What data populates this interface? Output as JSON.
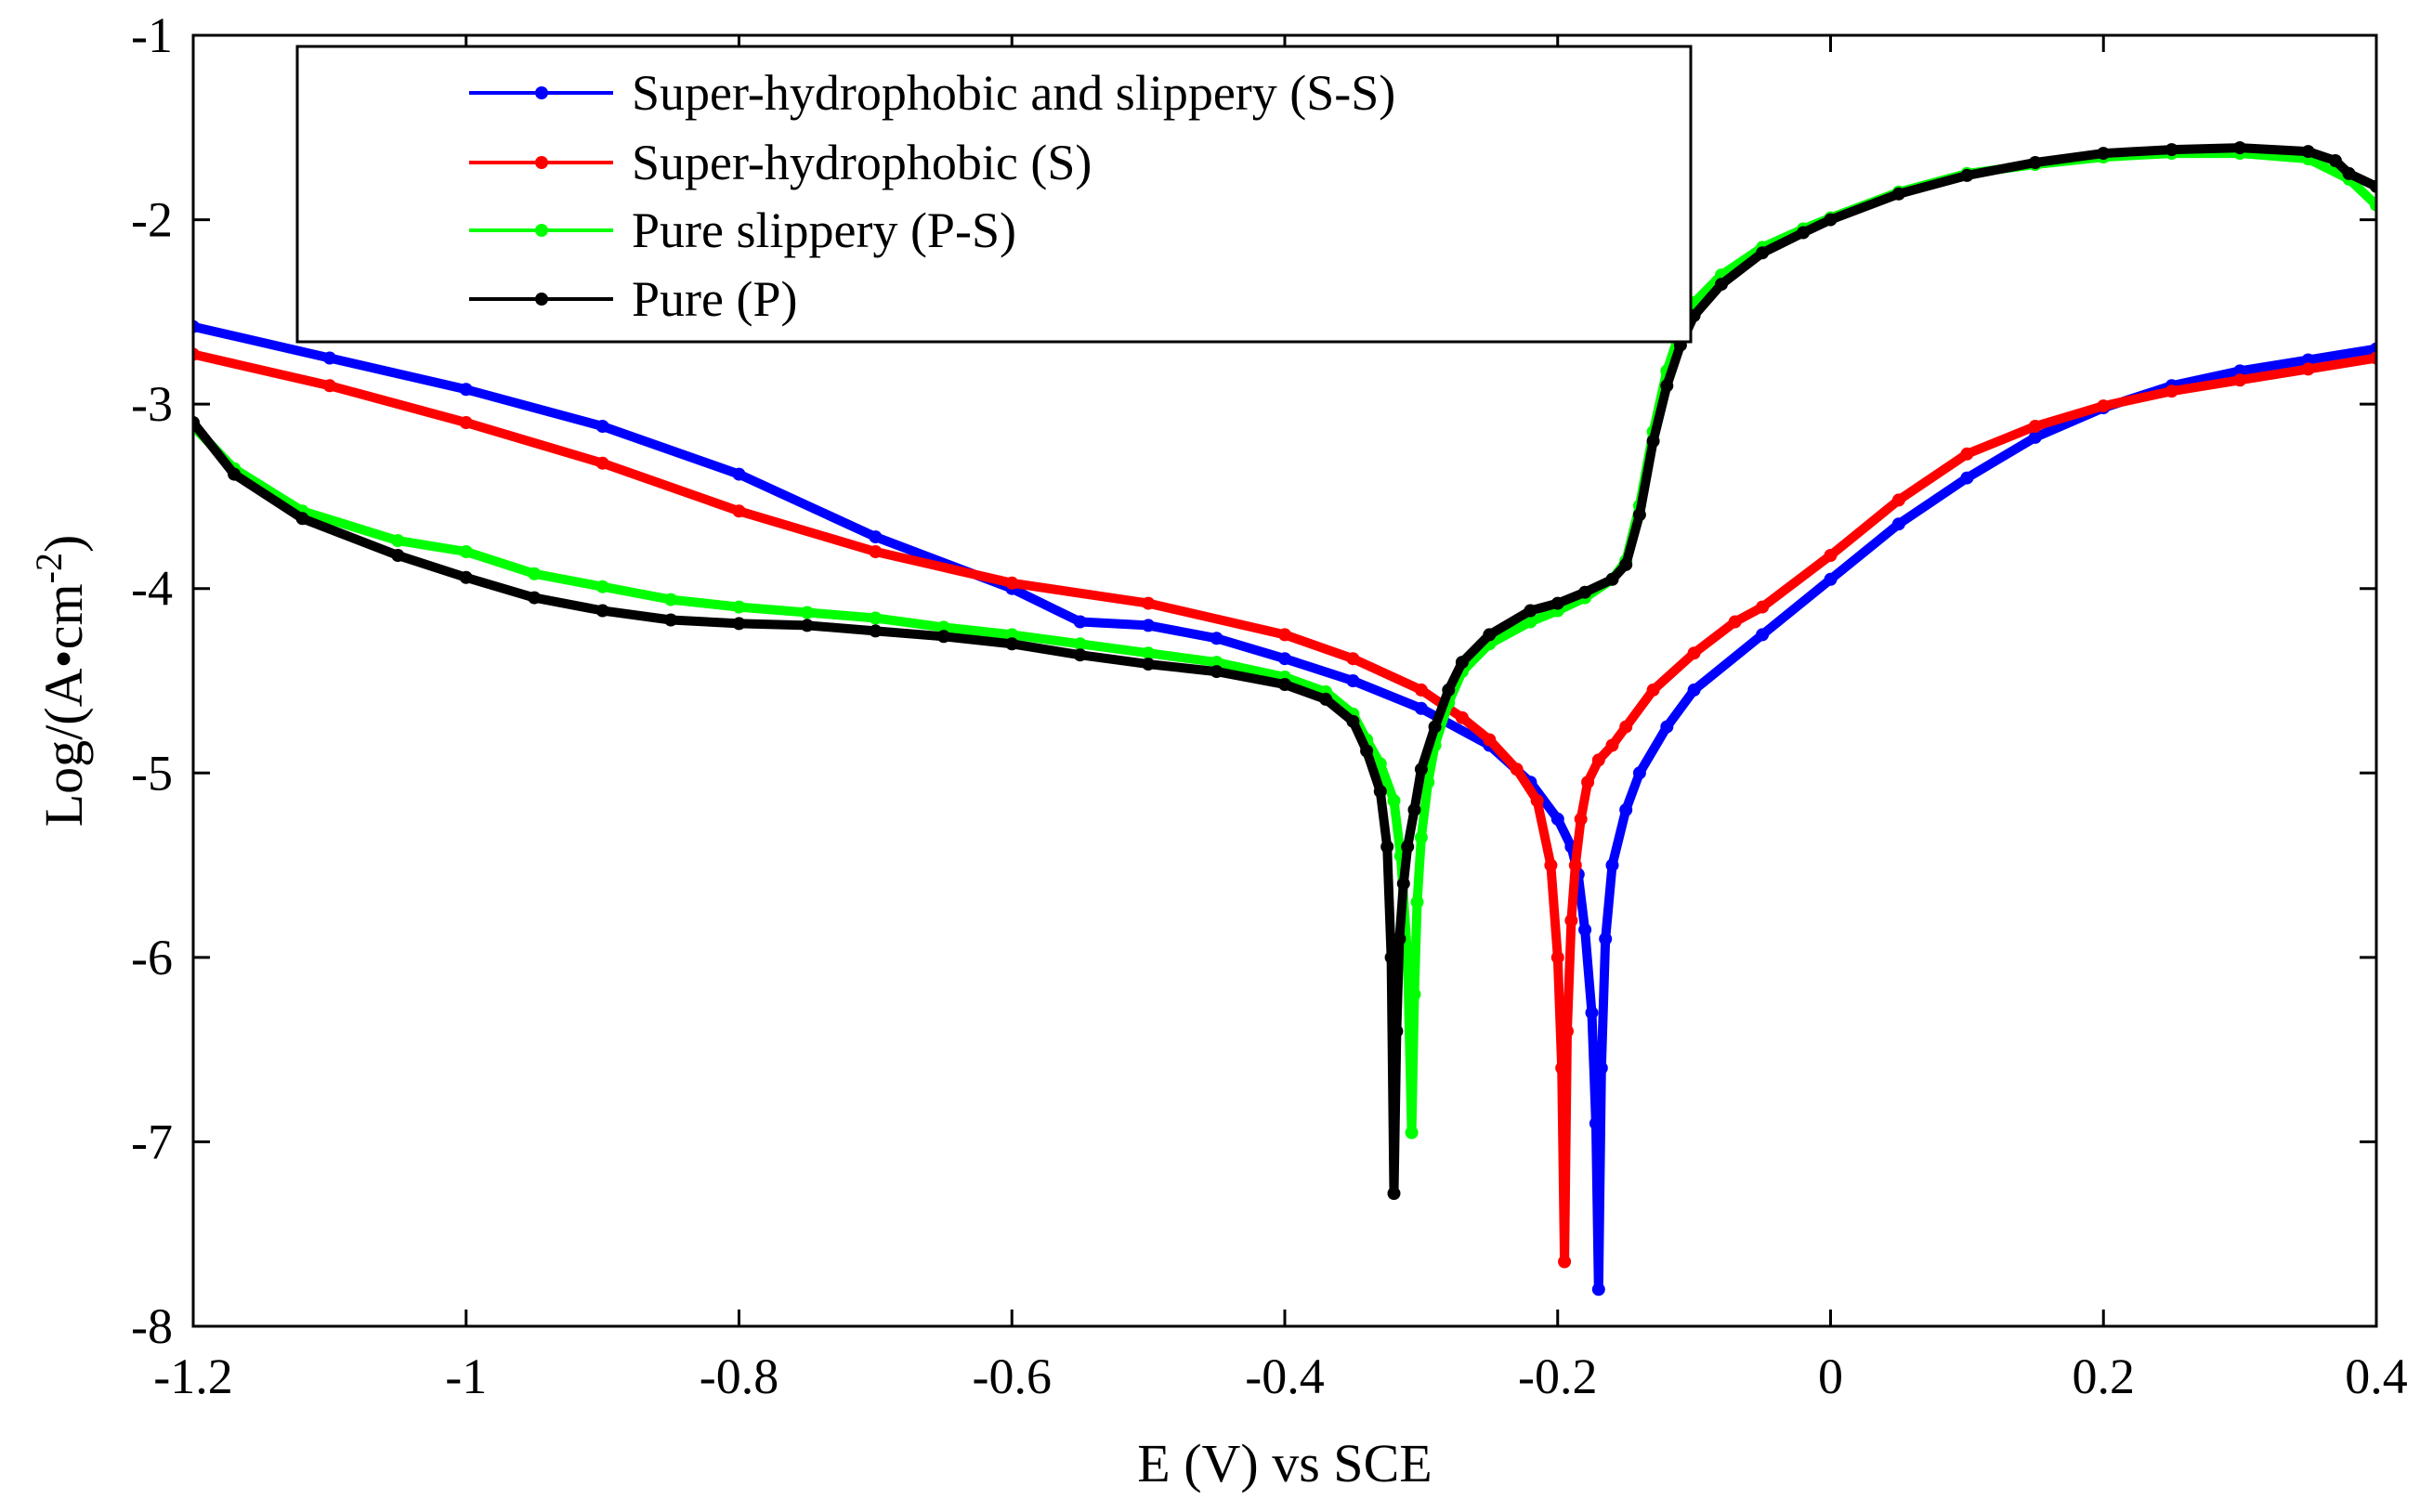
{
  "chart_data": {
    "type": "line",
    "title": "",
    "xlabel": "E (V) vs SCE",
    "ylabel": {
      "base": "Log/(A•cm",
      "superscript": "-2",
      "close": ")"
    },
    "xlim": [
      -1.2,
      0.4
    ],
    "ylim": [
      -8,
      -1
    ],
    "x_ticks": [
      -1.2,
      -1,
      -0.8,
      -0.6,
      -0.4,
      -0.2,
      0,
      0.2,
      0.4
    ],
    "x_tick_labels": [
      "-1.2",
      "-1",
      "-0.8",
      "-0.6",
      "-0.4",
      "-0.2",
      "0",
      "0.2",
      "0.4"
    ],
    "y_ticks": [
      -8,
      -7,
      -6,
      -5,
      -4,
      -3,
      -2,
      -1
    ],
    "y_tick_labels": [
      "-8",
      "-7",
      "-6",
      "-5",
      "-4",
      "-3",
      "-2",
      "-1"
    ],
    "grid": false,
    "legend_position": "top-center",
    "series": [
      {
        "name": "Super-hydrophobic and slippery (S-S)",
        "color": "#0000ff",
        "x": [
          -1.2,
          -1.1,
          -1.0,
          -0.9,
          -0.8,
          -0.7,
          -0.6,
          -0.55,
          -0.5,
          -0.45,
          -0.4,
          -0.35,
          -0.3,
          -0.25,
          -0.22,
          -0.2,
          -0.19,
          -0.185,
          -0.18,
          -0.175,
          -0.172,
          -0.17,
          -0.168,
          -0.165,
          -0.16,
          -0.15,
          -0.14,
          -0.12,
          -0.1,
          -0.05,
          0.0,
          0.05,
          0.1,
          0.15,
          0.2,
          0.25,
          0.3,
          0.35,
          0.4
        ],
        "y": [
          -2.58,
          -2.75,
          -2.92,
          -3.12,
          -3.38,
          -3.72,
          -4.0,
          -4.18,
          -4.2,
          -4.27,
          -4.38,
          -4.5,
          -4.65,
          -4.85,
          -5.05,
          -5.25,
          -5.4,
          -5.55,
          -5.85,
          -6.3,
          -6.9,
          -7.8,
          -6.6,
          -5.9,
          -5.5,
          -5.2,
          -5.0,
          -4.75,
          -4.55,
          -4.25,
          -3.95,
          -3.65,
          -3.4,
          -3.18,
          -3.02,
          -2.9,
          -2.82,
          -2.76,
          -2.7
        ]
      },
      {
        "name": "Super-hydrophobic (S)",
        "color": "#ff0000",
        "x": [
          -1.2,
          -1.1,
          -1.0,
          -0.9,
          -0.8,
          -0.7,
          -0.6,
          -0.5,
          -0.4,
          -0.35,
          -0.3,
          -0.27,
          -0.25,
          -0.23,
          -0.215,
          -0.205,
          -0.2,
          -0.197,
          -0.195,
          -0.193,
          -0.19,
          -0.187,
          -0.183,
          -0.178,
          -0.17,
          -0.16,
          -0.15,
          -0.13,
          -0.1,
          -0.07,
          -0.05,
          0.0,
          0.05,
          0.1,
          0.15,
          0.2,
          0.25,
          0.3,
          0.35,
          0.4
        ],
        "y": [
          -2.73,
          -2.9,
          -3.1,
          -3.32,
          -3.58,
          -3.8,
          -3.97,
          -4.08,
          -4.25,
          -4.38,
          -4.55,
          -4.7,
          -4.82,
          -4.98,
          -5.15,
          -5.5,
          -6.0,
          -6.6,
          -7.65,
          -6.4,
          -5.8,
          -5.5,
          -5.25,
          -5.05,
          -4.93,
          -4.85,
          -4.75,
          -4.55,
          -4.35,
          -4.18,
          -4.1,
          -3.82,
          -3.52,
          -3.27,
          -3.12,
          -3.01,
          -2.93,
          -2.87,
          -2.81,
          -2.75
        ]
      },
      {
        "name": "Pure slippery (P-S)",
        "color": "#00ff00",
        "x": [
          -1.2,
          -1.17,
          -1.12,
          -1.05,
          -1.0,
          -0.95,
          -0.9,
          -0.85,
          -0.8,
          -0.75,
          -0.7,
          -0.65,
          -0.6,
          -0.55,
          -0.5,
          -0.45,
          -0.4,
          -0.37,
          -0.35,
          -0.34,
          -0.33,
          -0.32,
          -0.315,
          -0.31,
          -0.307,
          -0.305,
          -0.303,
          -0.3,
          -0.295,
          -0.29,
          -0.28,
          -0.27,
          -0.25,
          -0.22,
          -0.2,
          -0.18,
          -0.16,
          -0.15,
          -0.14,
          -0.13,
          -0.12,
          -0.11,
          -0.1,
          -0.08,
          -0.05,
          -0.02,
          0.0,
          0.05,
          0.1,
          0.15,
          0.2,
          0.25,
          0.3,
          0.35,
          0.38,
          0.4
        ],
        "y": [
          -3.12,
          -3.35,
          -3.58,
          -3.74,
          -3.8,
          -3.92,
          -3.99,
          -4.06,
          -4.1,
          -4.13,
          -4.16,
          -4.21,
          -4.25,
          -4.3,
          -4.35,
          -4.4,
          -4.48,
          -4.56,
          -4.68,
          -4.82,
          -4.95,
          -5.15,
          -5.45,
          -6.0,
          -6.95,
          -6.2,
          -5.7,
          -5.35,
          -5.05,
          -4.85,
          -4.62,
          -4.45,
          -4.3,
          -4.18,
          -4.12,
          -4.05,
          -3.95,
          -3.85,
          -3.55,
          -3.15,
          -2.82,
          -2.6,
          -2.45,
          -2.3,
          -2.15,
          -2.05,
          -1.99,
          -1.85,
          -1.75,
          -1.7,
          -1.66,
          -1.64,
          -1.64,
          -1.67,
          -1.78,
          -1.92
        ]
      },
      {
        "name": "Pure (P)",
        "color": "#000000",
        "x": [
          -1.2,
          -1.17,
          -1.12,
          -1.05,
          -1.0,
          -0.95,
          -0.9,
          -0.85,
          -0.8,
          -0.75,
          -0.7,
          -0.65,
          -0.6,
          -0.55,
          -0.5,
          -0.45,
          -0.4,
          -0.37,
          -0.35,
          -0.34,
          -0.33,
          -0.325,
          -0.322,
          -0.32,
          -0.318,
          -0.316,
          -0.313,
          -0.31,
          -0.305,
          -0.3,
          -0.29,
          -0.28,
          -0.27,
          -0.25,
          -0.22,
          -0.2,
          -0.18,
          -0.16,
          -0.15,
          -0.14,
          -0.13,
          -0.12,
          -0.11,
          -0.1,
          -0.08,
          -0.05,
          -0.02,
          0.0,
          0.05,
          0.1,
          0.15,
          0.2,
          0.25,
          0.3,
          0.35,
          0.37,
          0.38,
          0.4
        ],
        "y": [
          -3.1,
          -3.38,
          -3.62,
          -3.82,
          -3.94,
          -4.05,
          -4.12,
          -4.17,
          -4.19,
          -4.2,
          -4.23,
          -4.26,
          -4.3,
          -4.36,
          -4.41,
          -4.45,
          -4.52,
          -4.6,
          -4.72,
          -4.88,
          -5.1,
          -5.4,
          -6.0,
          -7.28,
          -6.4,
          -5.9,
          -5.6,
          -5.4,
          -5.2,
          -4.98,
          -4.75,
          -4.55,
          -4.4,
          -4.25,
          -4.12,
          -4.08,
          -4.02,
          -3.95,
          -3.87,
          -3.6,
          -3.2,
          -2.9,
          -2.68,
          -2.52,
          -2.35,
          -2.18,
          -2.07,
          -2.0,
          -1.86,
          -1.76,
          -1.69,
          -1.64,
          -1.62,
          -1.61,
          -1.63,
          -1.68,
          -1.75,
          -1.82
        ]
      }
    ]
  }
}
